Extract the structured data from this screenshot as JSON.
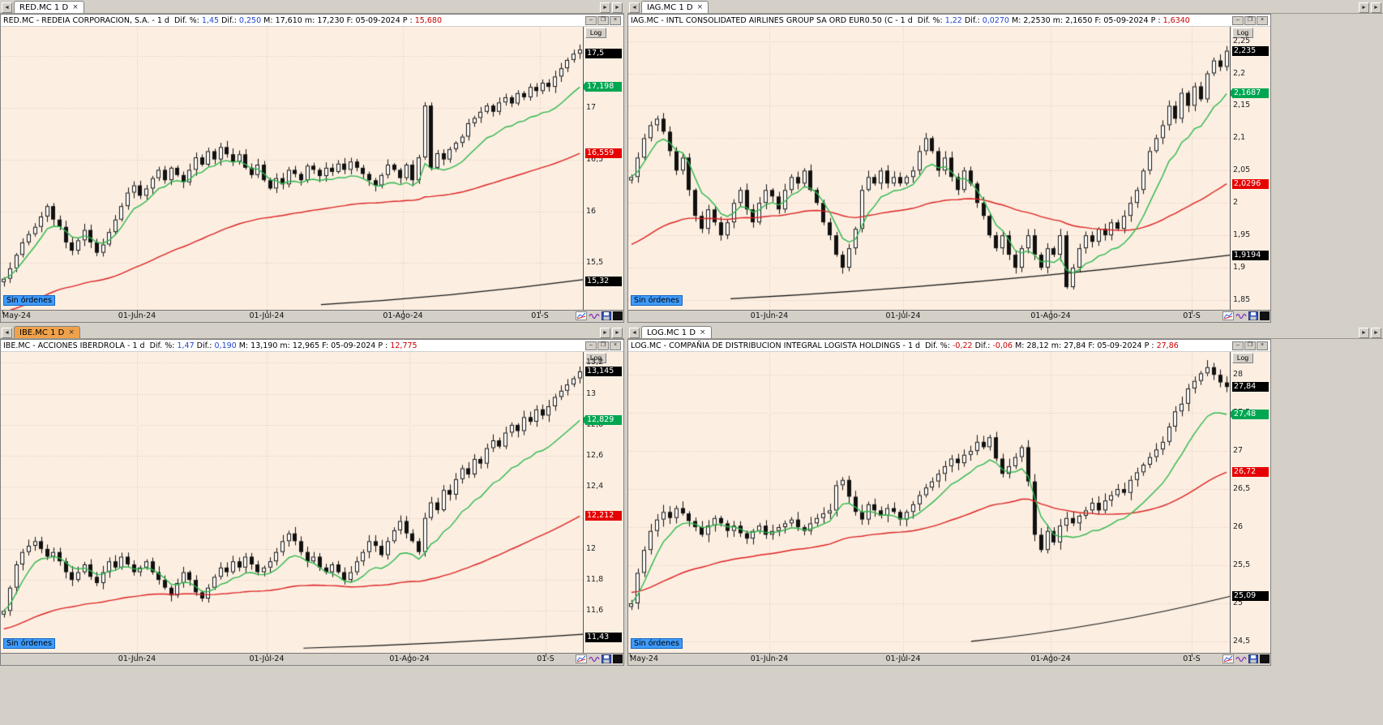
{
  "window": {
    "bg": "#d4d0c8"
  },
  "chrome": {
    "no_orders": "Sin órdenes",
    "log_label": "Log",
    "tab_close": "×",
    "arrow_left": "◄",
    "arrow_right": "►",
    "minimize": "–",
    "maximize": "❐",
    "close": "×"
  },
  "colors": {
    "chart_bg": "#fcefe2",
    "grid": "#dcc6b6",
    "candle": "#111111",
    "line_green": "#2eb84d",
    "line_red": "#dd2222",
    "line_slow": "#111111",
    "marker_green": "#00a651",
    "marker_red": "#e60000",
    "marker_black": "#000000",
    "value_blue": "#2244cc",
    "value_red": "#cc0000",
    "tab_active": "#f0a24b",
    "no_orders_bg": "#3e9bfd"
  },
  "panels": [
    {
      "tab": "RED.MC 1 D",
      "tab_active": false,
      "pad": 0,
      "title": "RED.MC - REDEIA CORPORACION, S.A. -  1 d",
      "stats": [
        {
          "label": "Dif. %:",
          "value": "1,45",
          "color": "blue"
        },
        {
          "label": "Dif.:",
          "value": "0,250",
          "color": "blue"
        },
        {
          "label": "M:",
          "value": "17,610",
          "color": ""
        },
        {
          "label": "m:",
          "value": "17,230",
          "color": ""
        },
        {
          "label": "F:",
          "value": "05-09-2024",
          "color": ""
        },
        {
          "label": "P :",
          "value": "15,680",
          "color": "red"
        }
      ],
      "y_min": 15.05,
      "y_max": 17.78,
      "ticks": [
        {
          "v": 17.5,
          "t": "17,5"
        },
        {
          "v": 17.0,
          "t": "17"
        },
        {
          "v": 16.5,
          "t": "16,5"
        },
        {
          "v": 16.0,
          "t": "16"
        },
        {
          "v": 15.5,
          "t": "15,5"
        }
      ],
      "markers": [
        {
          "v": 17.52,
          "t": "17,5",
          "c": "black"
        },
        {
          "v": 17.198,
          "t": "17,198",
          "c": "green"
        },
        {
          "v": 16.559,
          "t": "16,559",
          "c": "red"
        },
        {
          "v": 15.32,
          "t": "15,32",
          "c": "black"
        }
      ],
      "x_labels": [
        {
          "f": 0.003,
          "t": "May-24"
        },
        {
          "f": 0.234,
          "t": "01-Jun-24"
        },
        {
          "f": 0.457,
          "t": "01-Jul-24"
        },
        {
          "f": 0.691,
          "t": "01-Ago-24"
        },
        {
          "f": 0.926,
          "t": "01-S"
        }
      ],
      "wick": 0.06,
      "green_period": 6,
      "red_period": 55,
      "red_start": 15.02,
      "slow_line": {
        "f0": 0.55,
        "v0": 15.1,
        "f1": 1.0,
        "v1": 15.34
      },
      "closes": [
        15.35,
        15.45,
        15.58,
        15.7,
        15.78,
        15.85,
        15.95,
        16.05,
        15.92,
        15.85,
        15.7,
        15.62,
        15.72,
        15.82,
        15.7,
        15.6,
        15.68,
        15.8,
        15.92,
        16.05,
        16.18,
        16.25,
        16.15,
        16.22,
        16.32,
        16.4,
        16.3,
        16.42,
        16.35,
        16.28,
        16.4,
        16.52,
        16.45,
        16.58,
        16.5,
        16.62,
        16.55,
        16.48,
        16.55,
        16.42,
        16.35,
        16.45,
        16.3,
        16.22,
        16.32,
        16.26,
        16.4,
        16.36,
        16.3,
        16.44,
        16.4,
        16.34,
        16.42,
        16.38,
        16.46,
        16.4,
        16.48,
        16.42,
        16.36,
        16.3,
        16.25,
        16.35,
        16.45,
        16.4,
        16.32,
        16.45,
        16.3,
        16.52,
        17.02,
        16.42,
        16.56,
        16.5,
        16.6,
        16.66,
        16.72,
        16.85,
        16.9,
        16.96,
        17.02,
        16.96,
        17.05,
        17.1,
        17.04,
        17.14,
        17.1,
        17.2,
        17.16,
        17.24,
        17.2,
        17.3,
        17.38,
        17.46,
        17.52,
        17.56
      ]
    },
    {
      "tab": "IAG.MC 1 D",
      "tab_active": false,
      "pad": 138,
      "title": "IAG.MC - INTL CONSOLIDATED AIRLINES GROUP SA ORD EUR0.50 (C -  1 d",
      "stats": [
        {
          "label": "Dif. %:",
          "value": "1,22",
          "color": "blue"
        },
        {
          "label": "Dif.:",
          "value": "0,0270",
          "color": "blue"
        },
        {
          "label": "M:",
          "value": "2,2530",
          "color": ""
        },
        {
          "label": "m:",
          "value": "2,1650",
          "color": ""
        },
        {
          "label": "F:",
          "value": "05-09-2024",
          "color": ""
        },
        {
          "label": "P :",
          "value": "1,6340",
          "color": "red"
        }
      ],
      "y_min": 1.835,
      "y_max": 2.272,
      "ticks": [
        {
          "v": 2.25,
          "t": "2,25"
        },
        {
          "v": 2.2,
          "t": "2,2"
        },
        {
          "v": 2.15,
          "t": "2,15"
        },
        {
          "v": 2.1,
          "t": "2,1"
        },
        {
          "v": 2.05,
          "t": "2,05"
        },
        {
          "v": 2.0,
          "t": "2"
        },
        {
          "v": 1.95,
          "t": "1,95"
        },
        {
          "v": 1.9,
          "t": "1,9"
        },
        {
          "v": 1.85,
          "t": "1,85"
        }
      ],
      "markers": [
        {
          "v": 2.235,
          "t": "2,235",
          "c": "black"
        },
        {
          "v": 2.1687,
          "t": "2,1687",
          "c": "green"
        },
        {
          "v": 2.0296,
          "t": "2,0296",
          "c": "red"
        },
        {
          "v": 1.9194,
          "t": "1,9194",
          "c": "black"
        }
      ],
      "x_labels": [
        {
          "f": 0.234,
          "t": "01-Jun-24"
        },
        {
          "f": 0.457,
          "t": "01-Jul-24"
        },
        {
          "f": 0.702,
          "t": "01-Ago-24"
        },
        {
          "f": 0.936,
          "t": "01-S"
        }
      ],
      "wick": 0.01,
      "green_period": 6,
      "red_period": 55,
      "red_start": 1.932,
      "slow_line": {
        "f0": 0.17,
        "v0": 1.852,
        "f1": 1.0,
        "v1": 1.9194
      },
      "closes": [
        2.04,
        2.07,
        2.1,
        2.12,
        2.13,
        2.11,
        2.08,
        2.05,
        2.07,
        2.02,
        1.98,
        1.96,
        1.99,
        1.97,
        1.95,
        1.97,
        2.0,
        2.02,
        1.99,
        1.97,
        2.0,
        2.02,
        2.01,
        1.99,
        2.02,
        2.04,
        2.03,
        2.05,
        2.02,
        2.0,
        1.97,
        1.95,
        1.92,
        1.9,
        1.93,
        1.96,
        2.02,
        2.04,
        2.03,
        2.05,
        2.03,
        2.04,
        2.03,
        2.04,
        2.05,
        2.08,
        2.1,
        2.08,
        2.05,
        2.07,
        2.04,
        2.02,
        2.05,
        2.03,
        2.0,
        1.98,
        1.95,
        1.93,
        1.95,
        1.92,
        1.9,
        1.93,
        1.95,
        1.92,
        1.9,
        1.93,
        1.92,
        1.95,
        1.87,
        1.9,
        1.93,
        1.95,
        1.94,
        1.96,
        1.95,
        1.97,
        1.96,
        1.98,
        2.0,
        2.02,
        2.05,
        2.08,
        2.1,
        2.12,
        2.15,
        2.13,
        2.17,
        2.15,
        2.18,
        2.16,
        2.2,
        2.22,
        2.21,
        2.235
      ]
    },
    {
      "tab": "IBE.MC 1 D",
      "tab_active": true,
      "pad": 0,
      "title": "IBE.MC - ACCIONES IBERDROLA -  1 d",
      "stats": [
        {
          "label": "Dif. %:",
          "value": "1,47",
          "color": "blue"
        },
        {
          "label": "Dif.:",
          "value": "0,190",
          "color": "blue"
        },
        {
          "label": "M:",
          "value": "13,190",
          "color": ""
        },
        {
          "label": "m:",
          "value": "12,965",
          "color": ""
        },
        {
          "label": "F:",
          "value": "05-09-2024",
          "color": ""
        },
        {
          "label": "P :",
          "value": "12,775",
          "color": "red"
        }
      ],
      "y_min": 11.33,
      "y_max": 13.27,
      "ticks": [
        {
          "v": 13.2,
          "t": "13,2"
        },
        {
          "v": 13.0,
          "t": "13"
        },
        {
          "v": 12.8,
          "t": "12,8"
        },
        {
          "v": 12.6,
          "t": "12,6"
        },
        {
          "v": 12.4,
          "t": "12,4"
        },
        {
          "v": 12.2,
          "t": "12,2"
        },
        {
          "v": 12.0,
          "t": "12"
        },
        {
          "v": 11.8,
          "t": "11,8"
        },
        {
          "v": 11.6,
          "t": "11,6"
        }
      ],
      "markers": [
        {
          "v": 13.145,
          "t": "13,145",
          "c": "black"
        },
        {
          "v": 12.829,
          "t": "12,829",
          "c": "green"
        },
        {
          "v": 12.212,
          "t": "12,212",
          "c": "red"
        },
        {
          "v": 11.43,
          "t": "11,43",
          "c": "black"
        }
      ],
      "x_labels": [
        {
          "f": 0.234,
          "t": "01-Jun-24"
        },
        {
          "f": 0.457,
          "t": "01-Jul-24"
        },
        {
          "f": 0.702,
          "t": "01-Ago-24"
        },
        {
          "f": 0.936,
          "t": "01-S"
        }
      ],
      "wick": 0.042,
      "green_period": 6,
      "red_period": 55,
      "red_start": 11.48,
      "slow_line": {
        "f0": 0.52,
        "v0": 11.36,
        "f1": 1.0,
        "v1": 11.45
      },
      "closes": [
        11.6,
        11.75,
        11.9,
        11.98,
        12.02,
        12.05,
        12.0,
        11.95,
        11.98,
        11.92,
        11.85,
        11.8,
        11.85,
        11.9,
        11.82,
        11.78,
        11.85,
        11.92,
        11.88,
        11.95,
        11.9,
        11.85,
        11.88,
        11.92,
        11.85,
        11.8,
        11.75,
        11.7,
        11.78,
        11.85,
        11.8,
        11.72,
        11.68,
        11.75,
        11.82,
        11.88,
        11.85,
        11.92,
        11.88,
        11.95,
        11.9,
        11.85,
        11.88,
        11.92,
        11.98,
        12.05,
        12.1,
        12.05,
        11.98,
        11.92,
        11.95,
        11.88,
        11.85,
        11.9,
        11.85,
        11.8,
        11.85,
        11.92,
        11.98,
        12.05,
        12.02,
        11.96,
        12.05,
        12.12,
        12.18,
        12.1,
        12.05,
        11.98,
        12.2,
        12.3,
        12.25,
        12.38,
        12.35,
        12.45,
        12.52,
        12.48,
        12.58,
        12.55,
        12.65,
        12.7,
        12.66,
        12.75,
        12.8,
        12.76,
        12.85,
        12.82,
        12.9,
        12.86,
        12.92,
        12.98,
        13.02,
        13.06,
        13.1,
        13.145
      ]
    },
    {
      "tab": "LOG.MC 1 D",
      "tab_active": false,
      "pad": 138,
      "title": "LOG.MC - COMPAÑIA DE DISTRIBUCION INTEGRAL LOGISTA HOLDINGS -  1 d",
      "stats": [
        {
          "label": "Dif. %:",
          "value": "-0,22",
          "color": "red"
        },
        {
          "label": "Dif.:",
          "value": "-0,06",
          "color": "red"
        },
        {
          "label": "M:",
          "value": "28,12",
          "color": ""
        },
        {
          "label": "m:",
          "value": "27,84",
          "color": ""
        },
        {
          "label": "F:",
          "value": "05-09-2024",
          "color": ""
        },
        {
          "label": "P :",
          "value": "27,86",
          "color": "red"
        }
      ],
      "y_min": 24.35,
      "y_max": 28.3,
      "ticks": [
        {
          "v": 28.0,
          "t": "28"
        },
        {
          "v": 27.5,
          "t": "27,5"
        },
        {
          "v": 27.0,
          "t": "27"
        },
        {
          "v": 26.5,
          "t": "26,5"
        },
        {
          "v": 26.0,
          "t": "26"
        },
        {
          "v": 25.5,
          "t": "25,5"
        },
        {
          "v": 25.0,
          "t": "25"
        },
        {
          "v": 24.5,
          "t": "24,5"
        }
      ],
      "markers": [
        {
          "v": 27.84,
          "t": "27,84",
          "c": "black"
        },
        {
          "v": 27.48,
          "t": "27,48",
          "c": "green"
        },
        {
          "v": 26.72,
          "t": "26,72",
          "c": "red"
        },
        {
          "v": 25.09,
          "t": "25,09",
          "c": "black"
        }
      ],
      "x_labels": [
        {
          "f": 0.003,
          "t": "May-24"
        },
        {
          "f": 0.234,
          "t": "01-Jun-24"
        },
        {
          "f": 0.457,
          "t": "01-Jul-24"
        },
        {
          "f": 0.702,
          "t": "01-Ago-24"
        },
        {
          "f": 0.936,
          "t": "01-S"
        }
      ],
      "wick": 0.1,
      "green_period": 6,
      "red_period": 45,
      "red_start": 25.15,
      "slow_line": {
        "f0": 0.57,
        "v0": 24.5,
        "f1": 1.0,
        "v1": 25.09
      },
      "closes": [
        25.0,
        25.4,
        25.7,
        25.95,
        26.1,
        26.2,
        26.12,
        26.25,
        26.18,
        26.08,
        26.0,
        25.9,
        26.02,
        26.12,
        26.05,
        25.95,
        26.02,
        25.92,
        25.85,
        25.95,
        26.02,
        25.9,
        25.95,
        26.0,
        26.05,
        26.1,
        26.0,
        25.95,
        26.05,
        26.12,
        26.18,
        26.22,
        26.55,
        26.62,
        26.4,
        26.2,
        26.1,
        26.3,
        26.22,
        26.15,
        26.25,
        26.2,
        26.1,
        26.2,
        26.3,
        26.42,
        26.52,
        26.6,
        26.7,
        26.8,
        26.9,
        26.84,
        26.95,
        27.0,
        27.12,
        27.05,
        27.18,
        26.9,
        26.7,
        26.8,
        26.92,
        27.05,
        26.6,
        25.9,
        25.7,
        25.95,
        25.8,
        26.02,
        26.12,
        26.05,
        26.15,
        26.22,
        26.32,
        26.22,
        26.35,
        26.42,
        26.5,
        26.45,
        26.62,
        26.72,
        26.82,
        26.92,
        27.02,
        27.12,
        27.32,
        27.52,
        27.62,
        27.82,
        27.92,
        28.02,
        28.1,
        28.0,
        27.9,
        27.84
      ]
    }
  ]
}
